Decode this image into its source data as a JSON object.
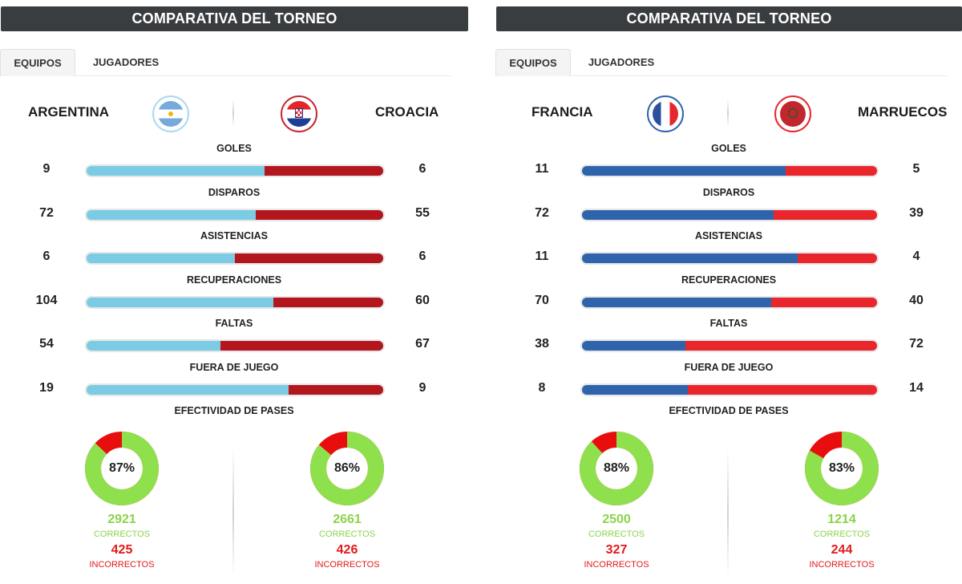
{
  "panels": [
    {
      "header": "COMPARATIVA DEL TORNEO",
      "tabs": [
        "EQUIPOS",
        "JUGADORES"
      ],
      "home": {
        "name": "ARGENTINA",
        "color": "#7ccbe5",
        "flag": "argentina-flag-icon"
      },
      "away": {
        "name": "CROACIA",
        "color": "#b3161d",
        "flag": "croatia-flag-icon"
      },
      "stats": [
        {
          "label": "GOLES",
          "home": "9",
          "away": "6",
          "home_share": 0.6
        },
        {
          "label": "DISPAROS",
          "home": "72",
          "away": "55",
          "home_share": 0.57
        },
        {
          "label": "ASISTENCIAS",
          "home": "6",
          "away": "6",
          "home_share": 0.5
        },
        {
          "label": "RECUPERACIONES",
          "home": "104",
          "away": "60",
          "home_share": 0.63
        },
        {
          "label": "FALTAS",
          "home": "54",
          "away": "67",
          "home_share": 0.45
        },
        {
          "label": "FUERA DE JUEGO",
          "home": "19",
          "away": "9",
          "home_share": 0.68
        }
      ],
      "passes_label": "EFECTIVIDAD DE PASES",
      "passes": [
        {
          "pct": "87%",
          "pct_value": 87,
          "correct": "2921",
          "correct_label": "CORRECTOS",
          "incorrect": "425",
          "incorrect_label": "INCORRECTOS"
        },
        {
          "pct": "86%",
          "pct_value": 86,
          "correct": "2661",
          "correct_label": "CORRECTOS",
          "incorrect": "426",
          "incorrect_label": "INCORRECTOS"
        }
      ]
    },
    {
      "header": "COMPARATIVA DEL TORNEO",
      "tabs": [
        "EQUIPOS",
        "JUGADORES"
      ],
      "home": {
        "name": "FRANCIA",
        "color": "#2f64ad",
        "flag": "france-flag-icon"
      },
      "away": {
        "name": "MARRUECOS",
        "color": "#e8262c",
        "flag": "morocco-flag-icon"
      },
      "stats": [
        {
          "label": "GOLES",
          "home": "11",
          "away": "5",
          "home_share": 0.69
        },
        {
          "label": "DISPAROS",
          "home": "72",
          "away": "39",
          "home_share": 0.65
        },
        {
          "label": "ASISTENCIAS",
          "home": "11",
          "away": "4",
          "home_share": 0.73
        },
        {
          "label": "RECUPERACIONES",
          "home": "70",
          "away": "40",
          "home_share": 0.64
        },
        {
          "label": "FALTAS",
          "home": "38",
          "away": "72",
          "home_share": 0.35
        },
        {
          "label": "FUERA DE JUEGO",
          "home": "8",
          "away": "14",
          "home_share": 0.36
        }
      ],
      "passes_label": "EFECTIVIDAD DE PASES",
      "passes": [
        {
          "pct": "88%",
          "pct_value": 88,
          "correct": "2500",
          "correct_label": "CORRECTOS",
          "incorrect": "327",
          "incorrect_label": "INCORRECTOS"
        },
        {
          "pct": "83%",
          "pct_value": 83,
          "correct": "1214",
          "correct_label": "CORRECTOS",
          "incorrect": "244",
          "incorrect_label": "INCORRECTOS"
        }
      ]
    }
  ],
  "colors": {
    "pass_correct": "#8fe04d",
    "pass_incorrect": "#e80e0e"
  }
}
